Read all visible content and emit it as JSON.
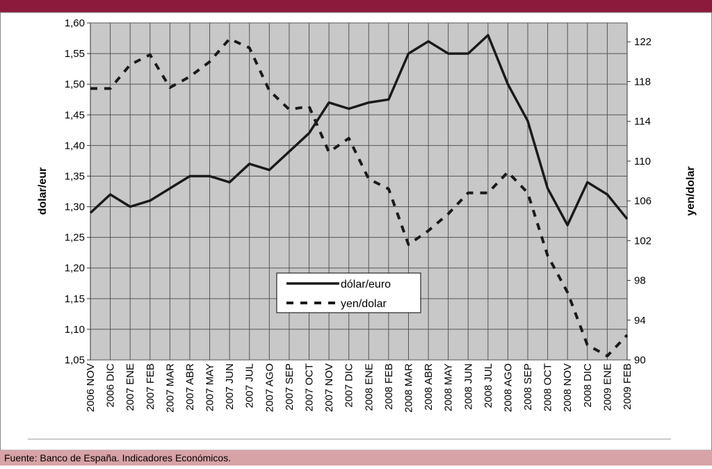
{
  "chart_data": {
    "type": "line",
    "categories": [
      "2006 NOV",
      "2006 DIC",
      "2007 ENE",
      "2007 FEB",
      "2007 MAR",
      "2007 ABR",
      "2007 MAY",
      "2007 JUN",
      "2007 JUL",
      "2007 AGO",
      "2007 SEP",
      "2007 OCT",
      "2007 NOV",
      "2007 DIC",
      "2008 ENE",
      "2008 FEB",
      "2008 MAR",
      "2008 ABR",
      "2008 MAY",
      "2008 JUN",
      "2008 JUL",
      "2008 AGO",
      "2008 SEP",
      "2008 OCT",
      "2008 NOV",
      "2008 DIC",
      "2009 ENE",
      "2009 FEB"
    ],
    "series": [
      {
        "name": "dólar/euro",
        "color": "#1a1a1a",
        "values": [
          1.29,
          1.32,
          1.3,
          1.31,
          1.33,
          1.35,
          1.35,
          1.34,
          1.37,
          1.36,
          1.39,
          1.42,
          1.47,
          1.46,
          1.47,
          1.475,
          1.55,
          1.57,
          1.55,
          1.55,
          1.58,
          1.5,
          1.44,
          1.33,
          1.27,
          1.34,
          1.32,
          1.28
        ]
      },
      {
        "name": "yen/dolar",
        "color": "#1a1a1a",
        "axis": "y2",
        "values": [
          117.3,
          117.3,
          119.7,
          120.7,
          117.4,
          118.5,
          120.0,
          122.3,
          121.4,
          117.1,
          115.2,
          115.5,
          110.9,
          112.3,
          108.2,
          107.2,
          101.6,
          103.0,
          104.7,
          106.8,
          106.8,
          108.9,
          106.8,
          100.5,
          96.8,
          91.5,
          90.4,
          92.5
        ]
      }
    ],
    "ylabel": "dolar/eur",
    "y2label": "yen/dolar",
    "ylim": [
      1.05,
      1.6
    ],
    "yticks": [
      {
        "value": 1.05,
        "label": "1,05"
      },
      {
        "value": 1.1,
        "label": "1,10"
      },
      {
        "value": 1.15,
        "label": "1,15"
      },
      {
        "value": 1.2,
        "label": "1,20"
      },
      {
        "value": 1.25,
        "label": "1,25"
      },
      {
        "value": 1.3,
        "label": "1,30"
      },
      {
        "value": 1.35,
        "label": "1,35"
      },
      {
        "value": 1.4,
        "label": "1,40"
      },
      {
        "value": 1.45,
        "label": "1,45"
      },
      {
        "value": 1.5,
        "label": "1,50"
      },
      {
        "value": 1.55,
        "label": "1,55"
      },
      {
        "value": 1.6,
        "label": "1,60"
      }
    ],
    "y2lim": [
      90,
      123.9
    ],
    "y2ticks": [
      90,
      94,
      98,
      102,
      106,
      110,
      114,
      118,
      122
    ],
    "grid": true,
    "source": "Fuente: Banco de España. Indicadores Económicos."
  }
}
